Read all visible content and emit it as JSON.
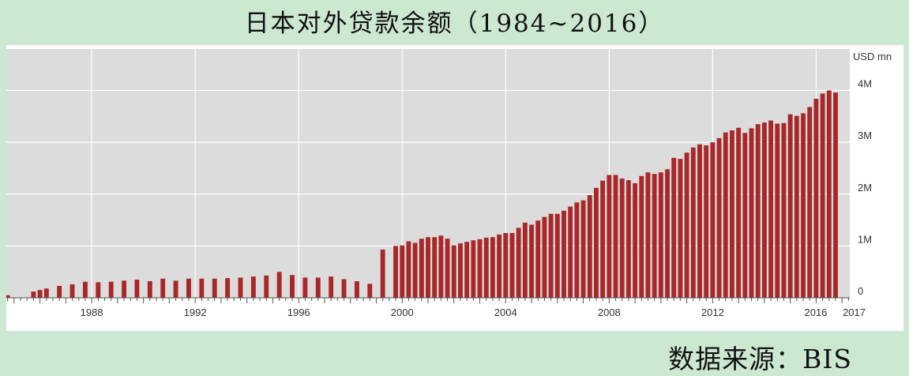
{
  "title": "日本对外贷款余额（1984~2016）",
  "source": "数据来源：BIS",
  "chart_data": {
    "type": "bar",
    "unit_label": "USD mn",
    "y_ticks": [
      {
        "value": 0,
        "label": "0"
      },
      {
        "value": 1000000,
        "label": "1M"
      },
      {
        "value": 2000000,
        "label": "2M"
      },
      {
        "value": 3000000,
        "label": "3M"
      },
      {
        "value": 4000000,
        "label": "4M"
      }
    ],
    "ylim": [
      0,
      4800000
    ],
    "xlim": [
      1984.7,
      2017.3
    ],
    "x_labels": [
      {
        "value": 1988,
        "label": "1988"
      },
      {
        "value": 1992,
        "label": "1992"
      },
      {
        "value": 1996,
        "label": "1996"
      },
      {
        "value": 2000,
        "label": "2000"
      },
      {
        "value": 2004,
        "label": "2004"
      },
      {
        "value": 2008,
        "label": "2008"
      },
      {
        "value": 2012,
        "label": "2012"
      },
      {
        "value": 2016,
        "label": "2016"
      },
      {
        "value": 2017,
        "label": "2017"
      }
    ],
    "bar_color": "#a8282a",
    "plot_bg": "#dcdcdc",
    "grid": true,
    "series": [
      {
        "values": [
          [
            1984.75,
            50000
          ],
          [
            1985.75,
            120000
          ],
          [
            1986.0,
            150000
          ],
          [
            1986.25,
            180000
          ],
          [
            1986.75,
            230000
          ],
          [
            1987.25,
            260000
          ],
          [
            1987.75,
            310000
          ],
          [
            1988.25,
            300000
          ],
          [
            1988.75,
            310000
          ],
          [
            1989.25,
            330000
          ],
          [
            1989.75,
            350000
          ],
          [
            1990.25,
            320000
          ],
          [
            1990.75,
            370000
          ],
          [
            1991.25,
            330000
          ],
          [
            1991.75,
            370000
          ],
          [
            1992.25,
            370000
          ],
          [
            1992.75,
            370000
          ],
          [
            1993.25,
            380000
          ],
          [
            1993.75,
            390000
          ],
          [
            1994.25,
            410000
          ],
          [
            1994.75,
            430000
          ],
          [
            1995.25,
            500000
          ],
          [
            1995.75,
            440000
          ],
          [
            1996.25,
            390000
          ],
          [
            1996.75,
            390000
          ],
          [
            1997.25,
            410000
          ],
          [
            1997.75,
            360000
          ],
          [
            1998.25,
            320000
          ],
          [
            1998.75,
            270000
          ],
          [
            1999.25,
            930000
          ],
          [
            1999.75,
            1000000
          ],
          [
            2000.0,
            1010000
          ],
          [
            2000.25,
            1090000
          ],
          [
            2000.5,
            1060000
          ],
          [
            2000.75,
            1140000
          ],
          [
            2001.0,
            1170000
          ],
          [
            2001.25,
            1170000
          ],
          [
            2001.5,
            1200000
          ],
          [
            2001.75,
            1140000
          ],
          [
            2002.0,
            1010000
          ],
          [
            2002.25,
            1050000
          ],
          [
            2002.5,
            1080000
          ],
          [
            2002.75,
            1110000
          ],
          [
            2003.0,
            1130000
          ],
          [
            2003.25,
            1160000
          ],
          [
            2003.5,
            1170000
          ],
          [
            2003.75,
            1220000
          ],
          [
            2004.0,
            1250000
          ],
          [
            2004.25,
            1250000
          ],
          [
            2004.5,
            1350000
          ],
          [
            2004.75,
            1450000
          ],
          [
            2005.0,
            1410000
          ],
          [
            2005.25,
            1490000
          ],
          [
            2005.5,
            1560000
          ],
          [
            2005.75,
            1620000
          ],
          [
            2006.0,
            1620000
          ],
          [
            2006.25,
            1680000
          ],
          [
            2006.5,
            1760000
          ],
          [
            2006.75,
            1840000
          ],
          [
            2007.0,
            1880000
          ],
          [
            2007.25,
            1980000
          ],
          [
            2007.5,
            2120000
          ],
          [
            2007.75,
            2260000
          ],
          [
            2008.0,
            2370000
          ],
          [
            2008.25,
            2370000
          ],
          [
            2008.5,
            2300000
          ],
          [
            2008.75,
            2270000
          ],
          [
            2009.0,
            2210000
          ],
          [
            2009.25,
            2350000
          ],
          [
            2009.5,
            2420000
          ],
          [
            2009.75,
            2390000
          ],
          [
            2010.0,
            2420000
          ],
          [
            2010.25,
            2480000
          ],
          [
            2010.5,
            2700000
          ],
          [
            2010.75,
            2680000
          ],
          [
            2011.0,
            2800000
          ],
          [
            2011.25,
            2900000
          ],
          [
            2011.5,
            2960000
          ],
          [
            2011.75,
            2940000
          ],
          [
            2012.0,
            3000000
          ],
          [
            2012.25,
            3080000
          ],
          [
            2012.5,
            3190000
          ],
          [
            2012.75,
            3230000
          ],
          [
            2013.0,
            3280000
          ],
          [
            2013.25,
            3180000
          ],
          [
            2013.5,
            3270000
          ],
          [
            2013.75,
            3350000
          ],
          [
            2014.0,
            3380000
          ],
          [
            2014.25,
            3420000
          ],
          [
            2014.5,
            3360000
          ],
          [
            2014.75,
            3370000
          ],
          [
            2015.0,
            3540000
          ],
          [
            2015.25,
            3510000
          ],
          [
            2015.5,
            3560000
          ],
          [
            2015.75,
            3680000
          ],
          [
            2016.0,
            3840000
          ],
          [
            2016.25,
            3940000
          ],
          [
            2016.5,
            4000000
          ],
          [
            2016.75,
            3960000
          ]
        ]
      }
    ]
  }
}
